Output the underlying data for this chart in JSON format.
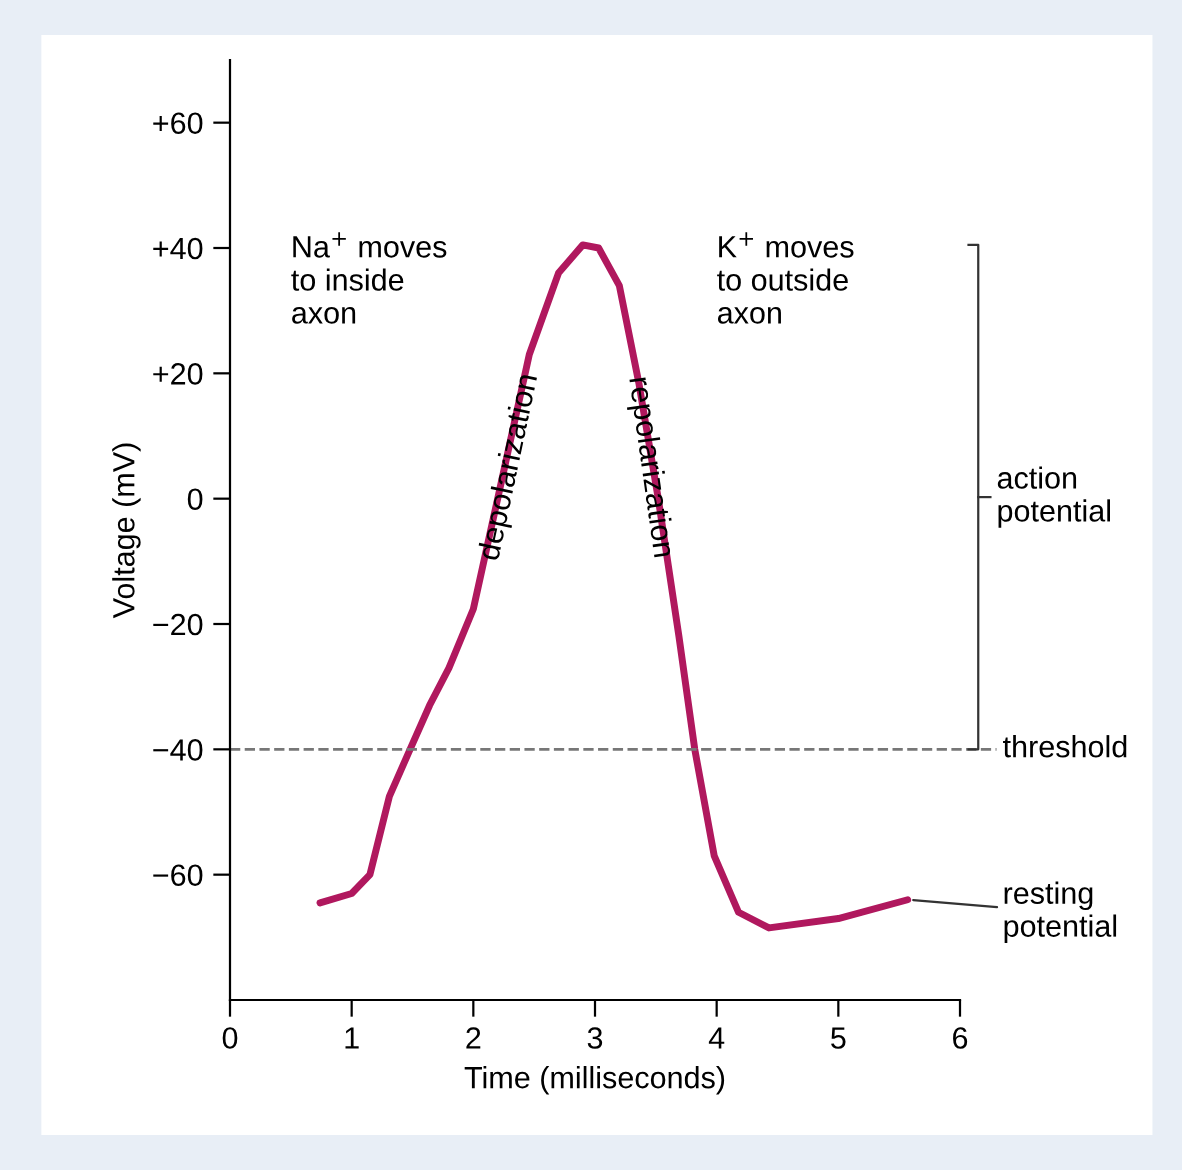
{
  "chart_data": {
    "type": "line",
    "xlabel": "Time (milliseconds)",
    "ylabel": "Voltage (mV)",
    "xlim": [
      0,
      6
    ],
    "xticks": [
      0,
      1,
      2,
      3,
      4,
      5,
      6
    ],
    "ylim": [
      -80,
      70
    ],
    "yticks": [
      {
        "value": 60,
        "label": "+60"
      },
      {
        "value": 40,
        "label": "+40"
      },
      {
        "value": 20,
        "label": "+20"
      },
      0,
      {
        "value": -20,
        "label": "−20"
      },
      {
        "value": -40,
        "label": "−40"
      },
      {
        "value": -60,
        "label": "−60"
      }
    ],
    "series": [
      {
        "color": "#b0185e",
        "x": [
          0.74,
          1.0,
          1.15,
          1.31,
          1.48,
          1.64,
          1.8,
          2.0,
          2.2,
          2.46,
          2.7,
          2.9,
          3.03,
          3.2,
          3.36,
          3.52,
          3.69,
          3.82,
          3.98,
          4.18,
          4.43,
          5.0,
          5.57
        ],
        "values": [
          -64.5,
          -63,
          -60,
          -47.5,
          -40,
          -33,
          -27,
          -17.6,
          0,
          23,
          36,
          40.5,
          40,
          34,
          18.5,
          0,
          -22,
          -40,
          -57,
          -66,
          -68.5,
          -67,
          -64
        ]
      }
    ],
    "ref_lines": [
      {
        "axis": "y",
        "value": -40,
        "label": "threshold",
        "color": "#777777",
        "line_style": "dashed"
      }
    ],
    "annotations": [
      "Na$^{+}$ moves\nto inside\naxon",
      "K$^{+}$ moves\nto outside\naxon",
      "action\npotential",
      {
        "text": "depolarization",
        "x": 2.3,
        "y": 5
      },
      {
        "text": "repolarization",
        "x": 3.45,
        "y": 5
      },
      {
        "text": "resting\npotential",
        "x": 5.57,
        "y": -64
      }
    ],
    "grid": false,
    "legend": false,
    "line_style": "solid",
    "marker": "none"
  }
}
